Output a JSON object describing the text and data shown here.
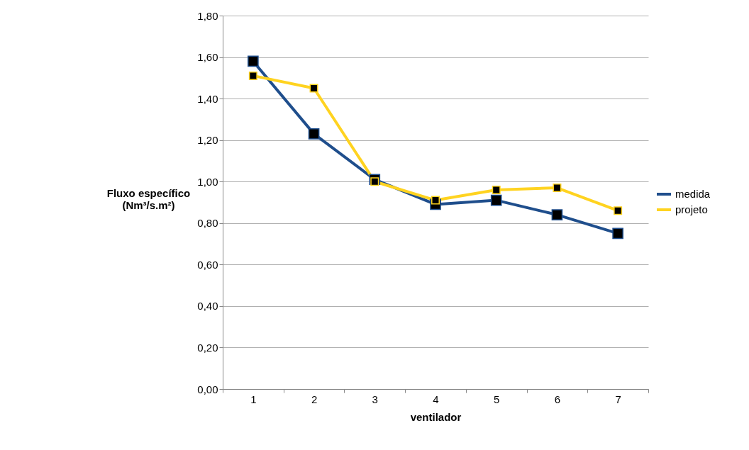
{
  "chart_data": {
    "type": "line",
    "xlabel": "ventilador",
    "ylabel": "Fluxo específico\n(Nm³/s.m²)",
    "categories": [
      "1",
      "2",
      "3",
      "4",
      "5",
      "6",
      "7"
    ],
    "series": [
      {
        "name": "medida",
        "color": "#1f4e8c",
        "values": [
          1.58,
          1.23,
          1.01,
          0.89,
          0.91,
          0.84,
          0.75
        ]
      },
      {
        "name": "projeto",
        "color": "#ffd320",
        "values": [
          1.51,
          1.45,
          1.0,
          0.91,
          0.96,
          0.97,
          0.86
        ]
      }
    ],
    "ylim": [
      0,
      1.8
    ],
    "yticks": [
      {
        "value": 0,
        "label": "0,00"
      },
      {
        "value": 0.2,
        "label": "0,20"
      },
      {
        "value": 0.4,
        "label": "0,40"
      },
      {
        "value": 0.6,
        "label": "0,60"
      },
      {
        "value": 0.8,
        "label": "0,80"
      },
      {
        "value": 1.0,
        "label": "1,00"
      },
      {
        "value": 1.2,
        "label": "1,20"
      },
      {
        "value": 1.4,
        "label": "1,40"
      },
      {
        "value": 1.6,
        "label": "1,60"
      },
      {
        "value": 1.8,
        "label": "1,80"
      }
    ],
    "grid": "y",
    "legend": "right",
    "marker": "square",
    "line_style": "solid"
  }
}
